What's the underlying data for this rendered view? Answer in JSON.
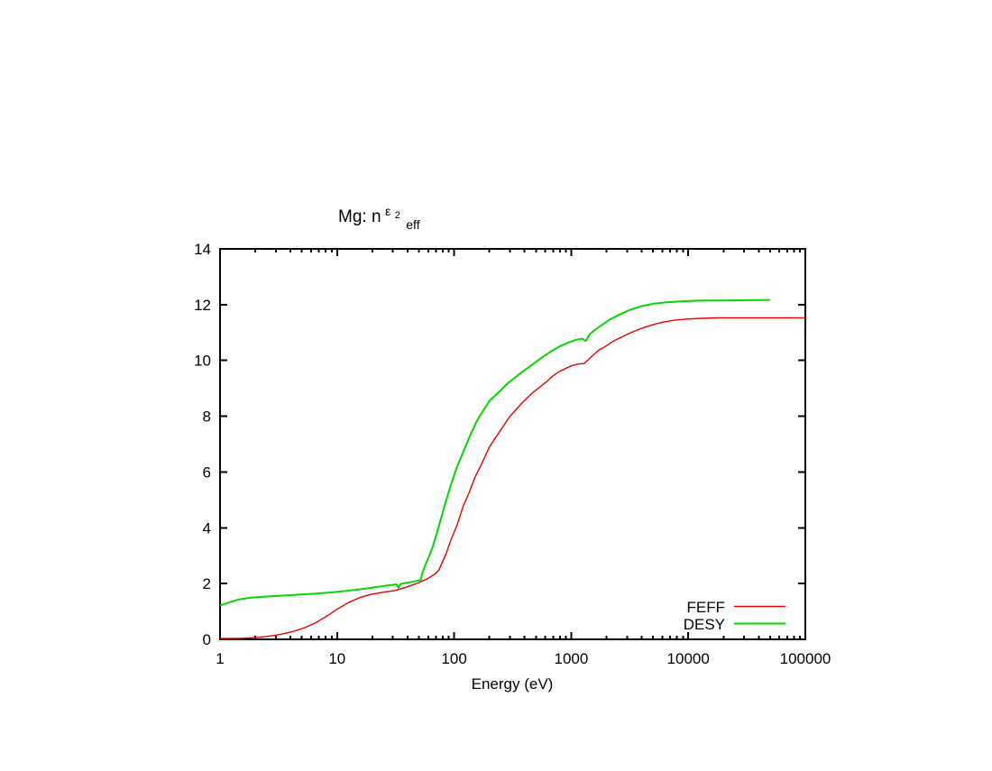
{
  "title": {
    "base": "Mg: n",
    "sup": "ε",
    "sup_sub": "2",
    "sub": "eff",
    "display": "Mg: n^ε2_eff"
  },
  "colors": {
    "background": "#ffffff",
    "axis": "#000000",
    "feff": "#ee0000",
    "desy": "#00d800"
  },
  "legend": {
    "position": "bottom-right",
    "items": [
      {
        "label": "FEFF"
      },
      {
        "label": "DESY"
      }
    ]
  },
  "chart_data": {
    "type": "line",
    "title": "Mg: n^ε2_eff",
    "xlabel": "Energy (eV)",
    "ylabel": "",
    "x_scale": "log",
    "xlim": [
      1,
      100000
    ],
    "ylim": [
      0,
      14
    ],
    "x_ticks": [
      1,
      10,
      100,
      1000,
      10000,
      100000
    ],
    "x_tick_labels": [
      "1",
      "10",
      "100",
      "1000",
      "10000",
      "100000"
    ],
    "y_ticks": [
      0,
      2,
      4,
      6,
      8,
      10,
      12,
      14
    ],
    "y_tick_labels": [
      "0",
      "2",
      "4",
      "6",
      "8",
      "10",
      "12",
      "14"
    ],
    "grid": false,
    "legend_position": "bottom-right",
    "series": [
      {
        "name": "FEFF",
        "color": "#ee0000",
        "points": [
          [
            1,
            0.03
          ],
          [
            1.5,
            0.04
          ],
          [
            2,
            0.06
          ],
          [
            2.6,
            0.11
          ],
          [
            3.3,
            0.18
          ],
          [
            4.2,
            0.28
          ],
          [
            5.3,
            0.42
          ],
          [
            6.6,
            0.6
          ],
          [
            8.3,
            0.85
          ],
          [
            10,
            1.08
          ],
          [
            12.5,
            1.32
          ],
          [
            15.7,
            1.5
          ],
          [
            19.7,
            1.62
          ],
          [
            24.8,
            1.69
          ],
          [
            31,
            1.75
          ],
          [
            39,
            1.87
          ],
          [
            49,
            2.02
          ],
          [
            59,
            2.17
          ],
          [
            69,
            2.35
          ],
          [
            74,
            2.48
          ],
          [
            84,
            3.0
          ],
          [
            95,
            3.62
          ],
          [
            106,
            4.1
          ],
          [
            120,
            4.8
          ],
          [
            134,
            5.25
          ],
          [
            150,
            5.8
          ],
          [
            170,
            6.25
          ],
          [
            200,
            6.9
          ],
          [
            240,
            7.4
          ],
          [
            300,
            8.0
          ],
          [
            385,
            8.5
          ],
          [
            470,
            8.85
          ],
          [
            560,
            9.1
          ],
          [
            620,
            9.25
          ],
          [
            700,
            9.45
          ],
          [
            790,
            9.6
          ],
          [
            900,
            9.72
          ],
          [
            1020,
            9.82
          ],
          [
            1150,
            9.87
          ],
          [
            1290,
            9.89
          ],
          [
            1500,
            10.15
          ],
          [
            1730,
            10.38
          ],
          [
            1920,
            10.48
          ],
          [
            2300,
            10.7
          ],
          [
            3090,
            10.96
          ],
          [
            3800,
            11.12
          ],
          [
            4700,
            11.25
          ],
          [
            6000,
            11.37
          ],
          [
            7500,
            11.44
          ],
          [
            9500,
            11.48
          ],
          [
            13000,
            11.51
          ],
          [
            18000,
            11.53
          ],
          [
            30000,
            11.53
          ],
          [
            55000,
            11.53
          ],
          [
            100000,
            11.53
          ]
        ]
      },
      {
        "name": "DESY",
        "color": "#00d800",
        "points": [
          [
            1,
            1.21
          ],
          [
            1.2,
            1.33
          ],
          [
            1.45,
            1.43
          ],
          [
            1.8,
            1.49
          ],
          [
            2.2,
            1.52
          ],
          [
            2.8,
            1.55
          ],
          [
            3.5,
            1.57
          ],
          [
            4.5,
            1.6
          ],
          [
            5.6,
            1.62
          ],
          [
            7,
            1.65
          ],
          [
            8.8,
            1.68
          ],
          [
            11,
            1.72
          ],
          [
            14,
            1.77
          ],
          [
            17.5,
            1.82
          ],
          [
            22,
            1.88
          ],
          [
            27,
            1.93
          ],
          [
            32,
            1.97
          ],
          [
            33.5,
            1.85
          ],
          [
            35,
            1.99
          ],
          [
            40,
            2.03
          ],
          [
            46,
            2.08
          ],
          [
            52,
            2.13
          ],
          [
            53,
            2.32
          ],
          [
            56,
            2.6
          ],
          [
            60,
            2.9
          ],
          [
            66,
            3.35
          ],
          [
            74,
            4.05
          ],
          [
            83,
            4.8
          ],
          [
            94,
            5.55
          ],
          [
            105,
            6.15
          ],
          [
            118,
            6.66
          ],
          [
            135,
            7.25
          ],
          [
            155,
            7.8
          ],
          [
            168,
            8.05
          ],
          [
            200,
            8.55
          ],
          [
            240,
            8.86
          ],
          [
            290,
            9.2
          ],
          [
            385,
            9.6
          ],
          [
            465,
            9.85
          ],
          [
            560,
            10.1
          ],
          [
            660,
            10.3
          ],
          [
            790,
            10.5
          ],
          [
            940,
            10.64
          ],
          [
            1100,
            10.74
          ],
          [
            1240,
            10.78
          ],
          [
            1330,
            10.7
          ],
          [
            1450,
            10.95
          ],
          [
            1600,
            11.1
          ],
          [
            1800,
            11.25
          ],
          [
            2100,
            11.45
          ],
          [
            2600,
            11.65
          ],
          [
            3200,
            11.82
          ],
          [
            4000,
            11.95
          ],
          [
            5000,
            12.03
          ],
          [
            6300,
            12.08
          ],
          [
            8000,
            12.11
          ],
          [
            10000,
            12.13
          ],
          [
            14000,
            12.15
          ],
          [
            20000,
            12.15
          ],
          [
            30000,
            12.16
          ],
          [
            50000,
            12.17
          ]
        ]
      }
    ]
  }
}
